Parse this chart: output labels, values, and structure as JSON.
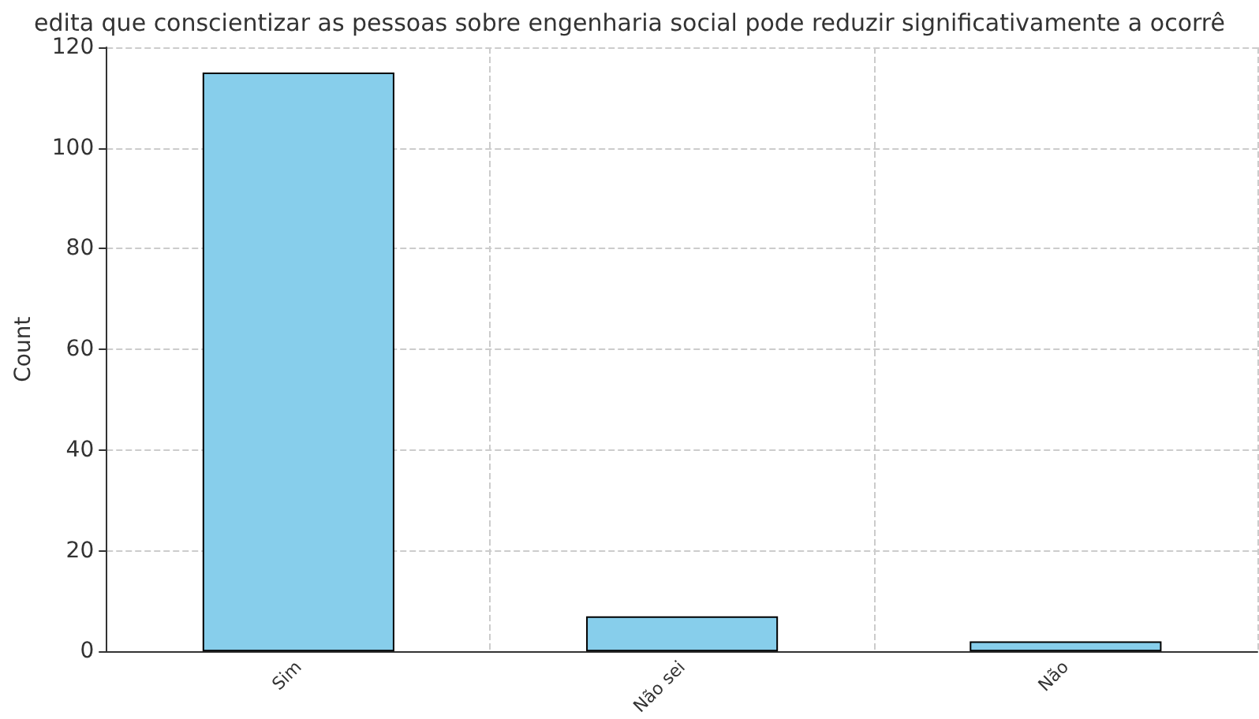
{
  "chart_data": {
    "type": "bar",
    "title": "edita que conscientizar as pessoas sobre engenharia social pode reduzir significativamente a ocorrê",
    "ylabel": "Count",
    "categories": [
      "Sim",
      "Não sei",
      "Não"
    ],
    "values": [
      115,
      7,
      2
    ],
    "color": "#87ceeb",
    "ylim": [
      0,
      120
    ],
    "yticks": [
      0,
      20,
      40,
      60,
      80,
      100,
      120
    ],
    "grid": true
  }
}
